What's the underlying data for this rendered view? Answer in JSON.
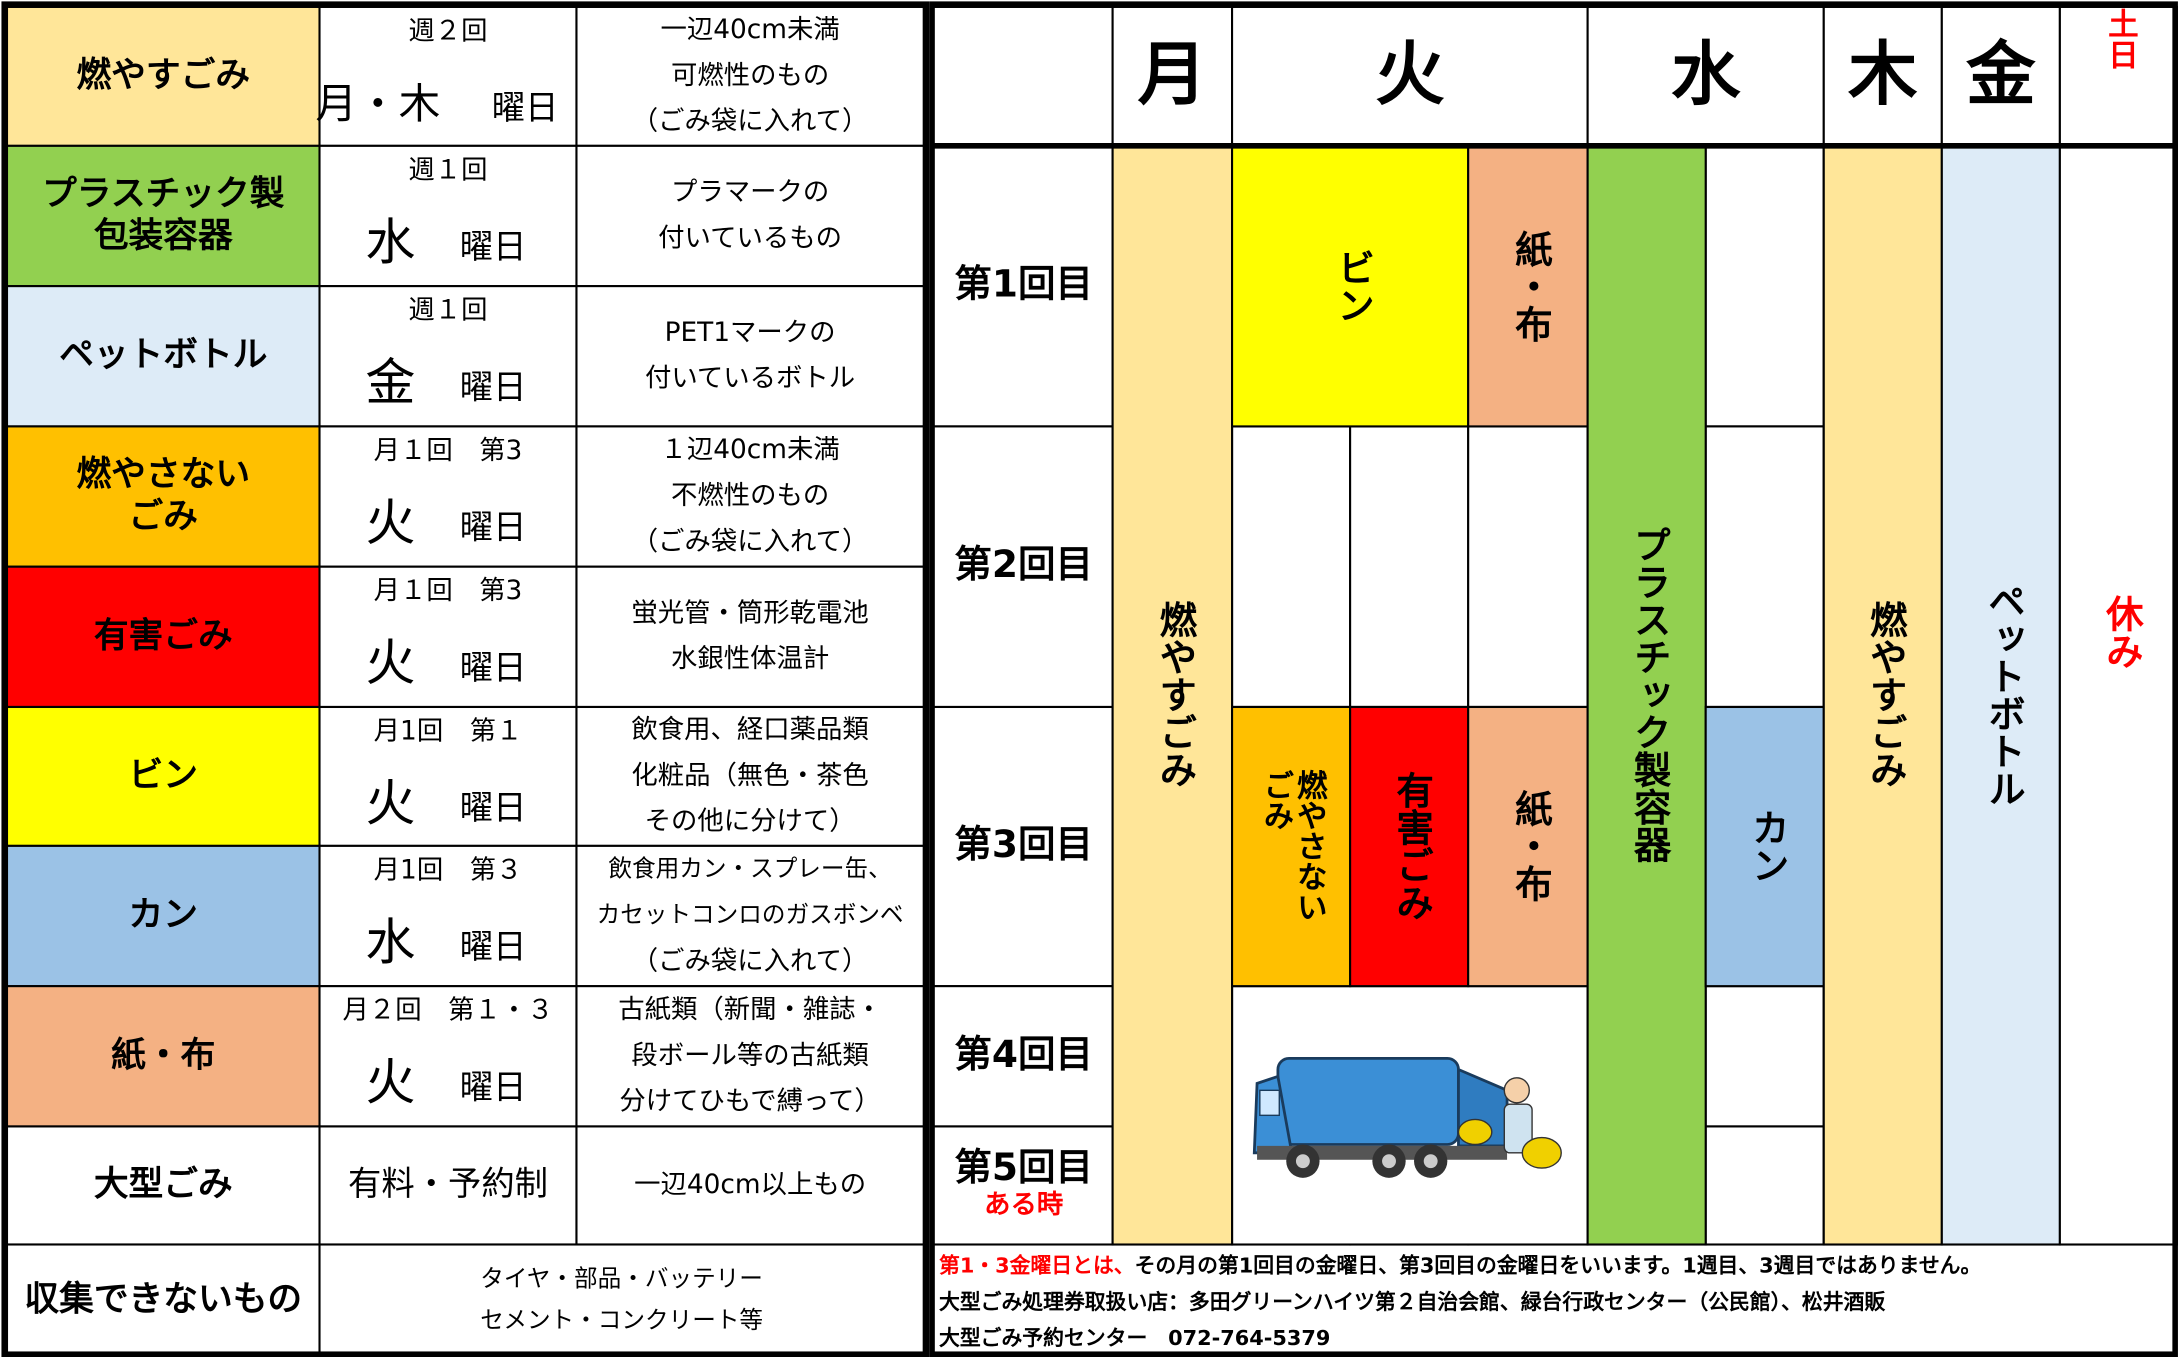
{
  "table": {
    "rows": [
      {
        "category": [
          "燃やすごみ"
        ],
        "color": "#ffe699",
        "frequency": "週２回",
        "day": "月・木",
        "suffix": "曜日",
        "details": [
          "一辺40cm未満",
          "可燃性のもの",
          "（ごみ袋に入れて）"
        ]
      },
      {
        "category": [
          "プラスチック製",
          "包装容器"
        ],
        "color": "#92d050",
        "frequency": "週１回",
        "day": "水",
        "suffix": "曜日",
        "details": [
          "プラマークの",
          "付いているもの"
        ]
      },
      {
        "category": [
          "ペットボトル"
        ],
        "color": "#ddebf7",
        "frequency": "週１回",
        "day": "金",
        "suffix": "曜日",
        "details": [
          "PET1マークの",
          "付いているボトル"
        ]
      },
      {
        "category": [
          "燃やさない",
          "ごみ"
        ],
        "color": "#ffc000",
        "frequency": "月１回　第3",
        "day": "火",
        "suffix": "曜日",
        "details": [
          "１辺40cm未満",
          "不燃性のもの",
          "（ごみ袋に入れて）"
        ]
      },
      {
        "category": [
          "有害ごみ"
        ],
        "color": "#ff0000",
        "frequency": "月１回　第3",
        "day": "火",
        "suffix": "曜日",
        "details": [
          "蛍光管・筒形乾電池",
          "水銀性体温計"
        ]
      },
      {
        "category": [
          "ビン"
        ],
        "color": "#ffff00",
        "frequency": "月1回　第１",
        "day": "火",
        "suffix": "曜日",
        "details": [
          "飲食用、経口薬品類",
          "化粧品（無色・茶色",
          "その他に分けて）"
        ]
      },
      {
        "category": [
          "カン"
        ],
        "color": "#9bc2e6",
        "frequency": "月1回　第３",
        "day": "水",
        "suffix": "曜日",
        "details": [
          "飲食用カン・スプレー缶、",
          "カセットコンロのガスボンベ",
          "（ごみ袋に入れて）"
        ]
      },
      {
        "category": [
          "紙・布"
        ],
        "color": "#f4b183",
        "frequency": "月２回　第１・３",
        "day": "火",
        "suffix": "曜日",
        "details": [
          "古紙類（新聞・雑誌・",
          "段ボール等の古紙類",
          "分けてひもで縛って）"
        ]
      },
      {
        "category": [
          "大型ごみ"
        ],
        "color": "#ffffff",
        "frequency": "有料・予約制",
        "details": [
          "一辺40cm以上もの"
        ]
      },
      {
        "category": [
          "収集できないもの"
        ],
        "color": "#ffffff",
        "details": [
          "タイヤ・部品・バッテリー",
          "セメント・コンクリート等"
        ]
      }
    ]
  },
  "calendar": {
    "days": [
      "月",
      "火",
      "水",
      "木",
      "金",
      "土日"
    ],
    "weekend_color": "#ff0000",
    "weeks": [
      "第1回目",
      "第2回目",
      "第3回目",
      "第4回目",
      "第5回目"
    ],
    "week5_note": "ある時",
    "blocks": [
      {
        "label": [
          "燃やすごみ"
        ],
        "color": "#ffe699",
        "text_color": "#000000"
      },
      {
        "label": [
          "ビン"
        ],
        "color": "#ffff00",
        "text_color": "#000000"
      },
      {
        "label": [
          "紙・布"
        ],
        "color": "#f4b183",
        "text_color": "#000000"
      },
      {
        "label": [
          "燃やさない",
          "ごみ"
        ],
        "color": "#ffc000",
        "text_color": "#000000"
      },
      {
        "label": [
          "有害ごみ"
        ],
        "color": "#ff0000",
        "text_color": "#000000"
      },
      {
        "label": [
          "紙・布"
        ],
        "color": "#f4b183",
        "text_color": "#000000"
      },
      {
        "label": [
          "プラスチック製容器"
        ],
        "color": "#92d050",
        "text_color": "#000000"
      },
      {
        "label": [
          "カン"
        ],
        "color": "#9bc2e6",
        "text_color": "#000000"
      },
      {
        "label": [
          "燃やすごみ"
        ],
        "color": "#ffe699",
        "text_color": "#000000"
      },
      {
        "label": [
          "ペットボトル"
        ],
        "color": "#ddebf7",
        "text_color": "#000000"
      },
      {
        "label": [
          "休み"
        ],
        "color": "#ffffff",
        "text_color": "#ff0000"
      }
    ]
  },
  "notes": [
    {
      "highlight": "第1・3金曜日とは、",
      "text": "その月の第1回目の金曜日、第3回目の金曜日をいいます。1週目、3週目ではありません。"
    },
    {
      "text": "大型ごみ処理券取扱い店：多田グリーンハイツ第２自治会館、緑台行政センター（公民館）、松井酒販"
    },
    {
      "text": "大型ごみ予約センター　072-764-5379"
    }
  ]
}
